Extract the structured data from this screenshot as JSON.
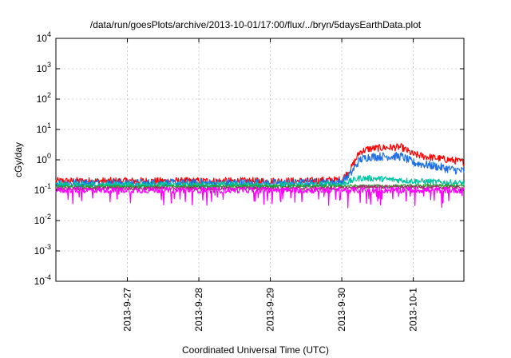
{
  "chart_data": {
    "type": "line",
    "title": "/data/run/goesPlots/archive/2013-10-01/17:00/flux/../bryn/5daysEarthData.plot",
    "xlabel": "Coordinated Universal Time (UTC)",
    "ylabel": "cGy/day",
    "yscale": "log",
    "ylim": [
      0.0001,
      10000
    ],
    "yticks": [
      {
        "v": 0.0001,
        "base": "10",
        "exp": "-4"
      },
      {
        "v": 0.001,
        "base": "10",
        "exp": "-3"
      },
      {
        "v": 0.01,
        "base": "10",
        "exp": "-2"
      },
      {
        "v": 0.1,
        "base": "10",
        "exp": "-1"
      },
      {
        "v": 1,
        "base": "10",
        "exp": "0"
      },
      {
        "v": 10,
        "base": "10",
        "exp": "1"
      },
      {
        "v": 100,
        "base": "10",
        "exp": "2"
      },
      {
        "v": 1000,
        "base": "10",
        "exp": "3"
      },
      {
        "v": 10000,
        "base": "10",
        "exp": "4"
      }
    ],
    "xlim": [
      "2013-09-26 00:00",
      "2013-10-01 17:00"
    ],
    "xticks": [
      "2013-9-27",
      "2013-9-28",
      "2013-9-29",
      "2013-9-30",
      "2013-10-1"
    ],
    "grid": true,
    "series": [
      {
        "color": "#ff0000",
        "x": [
          "2013-09-26 00:00",
          "2013-09-29 12:00",
          "2013-09-30 00:00",
          "2013-09-30 03:00",
          "2013-09-30 06:00",
          "2013-09-30 09:00",
          "2013-09-30 14:00",
          "2013-09-30 20:00",
          "2013-10-01 00:00",
          "2013-10-01 06:00",
          "2013-10-01 12:00",
          "2013-10-01 17:00"
        ],
        "values": [
          0.2,
          0.2,
          0.22,
          0.5,
          1.8,
          2.3,
          2.5,
          2.6,
          1.5,
          1.2,
          1.0,
          0.85
        ]
      },
      {
        "color": "#1e6fe6",
        "x": [
          "2013-09-26 00:00",
          "2013-09-29 12:00",
          "2013-09-30 00:00",
          "2013-09-30 03:00",
          "2013-09-30 06:00",
          "2013-09-30 09:00",
          "2013-09-30 14:00",
          "2013-09-30 20:00",
          "2013-10-01 00:00",
          "2013-10-01 06:00",
          "2013-10-01 12:00",
          "2013-10-01 17:00"
        ],
        "values": [
          0.17,
          0.17,
          0.19,
          0.35,
          1.0,
          1.25,
          1.3,
          1.3,
          0.8,
          0.65,
          0.5,
          0.42
        ]
      },
      {
        "color": "#00c4a0",
        "x": [
          "2013-09-26 00:00",
          "2013-09-29 12:00",
          "2013-09-30 00:00",
          "2013-09-30 06:00",
          "2013-09-30 12:00",
          "2013-10-01 00:00",
          "2013-10-01 17:00"
        ],
        "values": [
          0.15,
          0.15,
          0.16,
          0.25,
          0.24,
          0.2,
          0.17
        ]
      },
      {
        "color": "#2d9c2d",
        "x": [
          "2013-09-26 00:00",
          "2013-10-01 17:00"
        ],
        "values": [
          0.13,
          0.14
        ]
      },
      {
        "color": "#a0306a",
        "x": [
          "2013-09-26 00:00",
          "2013-09-30 00:00",
          "2013-09-30 08:00",
          "2013-10-01 17:00"
        ],
        "values": [
          0.115,
          0.115,
          0.13,
          0.12
        ]
      },
      {
        "color": "#ff00ff",
        "x": [
          "2013-09-26 00:00",
          "2013-10-01 17:00"
        ],
        "values": [
          0.1,
          0.1
        ]
      }
    ]
  }
}
